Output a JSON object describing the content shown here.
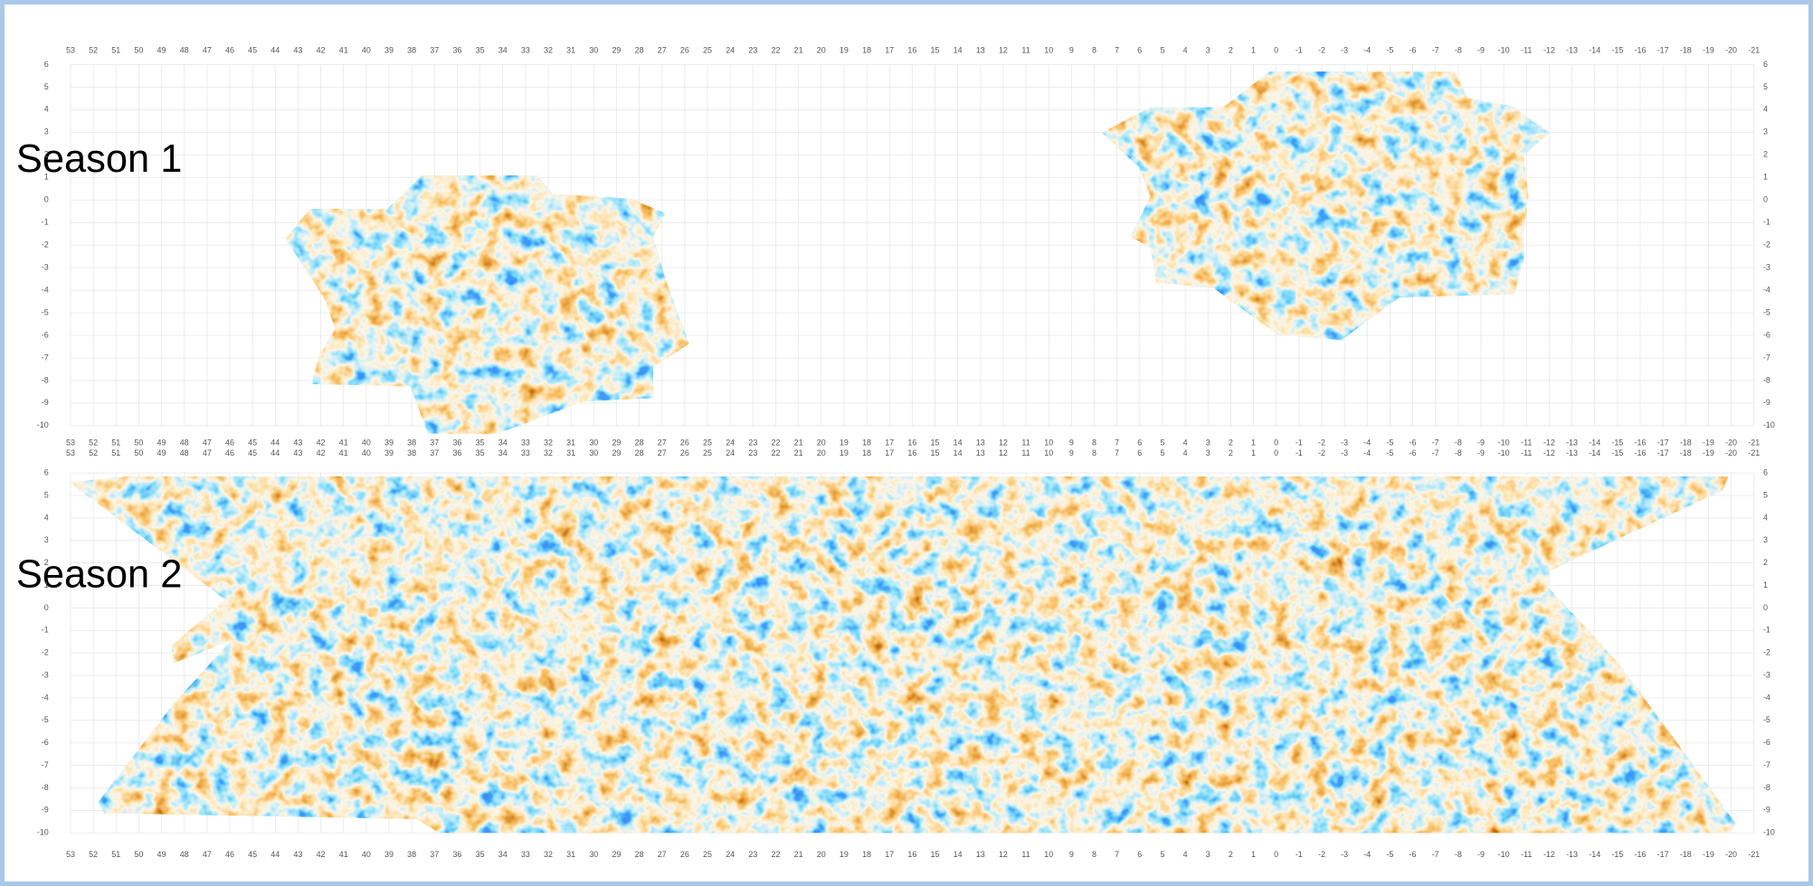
{
  "panels": [
    {
      "label": "Season 1"
    },
    {
      "label": "Season 2"
    }
  ],
  "x_ticks": [
    53,
    52,
    51,
    50,
    49,
    48,
    47,
    46,
    45,
    44,
    43,
    42,
    41,
    40,
    39,
    38,
    37,
    36,
    35,
    34,
    33,
    32,
    31,
    30,
    29,
    28,
    27,
    26,
    25,
    24,
    23,
    22,
    21,
    20,
    19,
    18,
    17,
    16,
    15,
    14,
    13,
    12,
    11,
    10,
    9,
    8,
    7,
    6,
    5,
    4,
    3,
    2,
    1,
    0,
    -1,
    -2,
    -3,
    -4,
    -5,
    -6,
    -7,
    -8,
    -9,
    -10,
    -11,
    -12,
    -13,
    -14,
    -15,
    -16,
    -17,
    -18,
    -19,
    -20,
    -21
  ],
  "y_ticks": [
    6,
    5,
    4,
    3,
    2,
    1,
    0,
    -1,
    -2,
    -3,
    -4,
    -5,
    -6,
    -7,
    -8,
    -9,
    -10
  ]
}
